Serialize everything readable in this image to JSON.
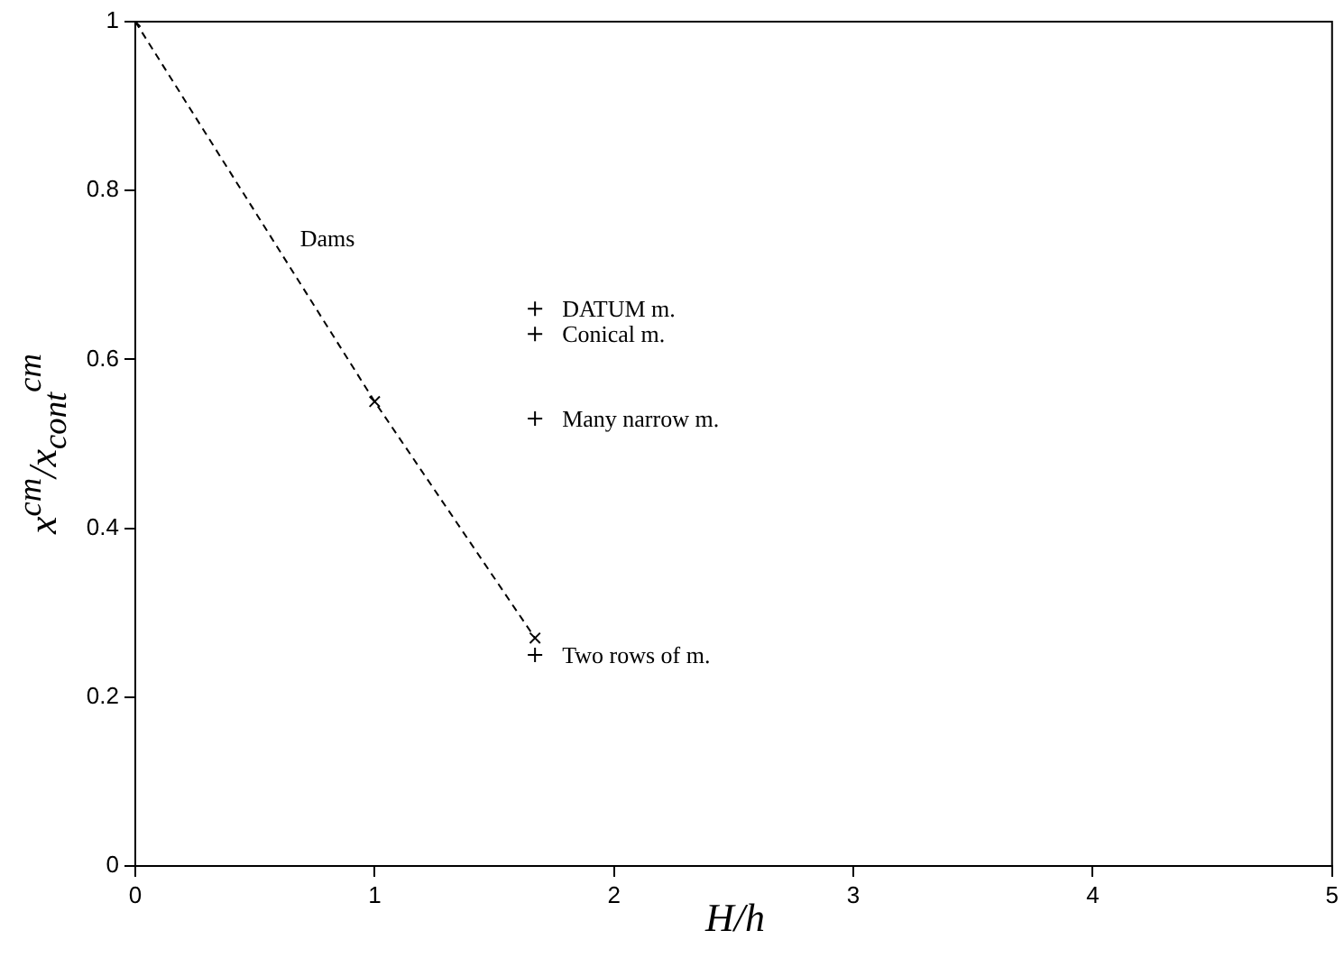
{
  "chart_data": {
    "type": "line",
    "xlabel": "H/h",
    "ylabel": "x$^{cm}$/x$_{cont}$$^{cm}$",
    "xlim": [
      0,
      5
    ],
    "xticks": [
      0,
      1,
      2,
      3,
      4,
      5
    ],
    "ylim": [
      0,
      1
    ],
    "yticks": [
      0,
      {
        "value": 0.2,
        "label": "0.2"
      },
      {
        "value": 0.4,
        "label": "0.4"
      },
      {
        "value": 0.6,
        "label": "0.6"
      },
      {
        "value": 0.8,
        "label": "0.8"
      },
      1
    ],
    "grid": false,
    "legend": false,
    "series": [
      {
        "name": "Dams",
        "type": "line",
        "color": "#000000",
        "x": [
          0,
          1,
          1.67
        ],
        "values": [
          1,
          0.55,
          0.27
        ],
        "marker": "cross",
        "line_style": "dashed"
      },
      {
        "name": "DATUM m.",
        "type": "scatter",
        "color": "#000000",
        "x": [
          1.67
        ],
        "values": [
          0.66
        ],
        "marker": "cross"
      },
      {
        "name": "Conical m.",
        "type": "scatter",
        "color": "#000000",
        "x": [
          1.67
        ],
        "values": [
          0.63
        ],
        "marker": "cross"
      },
      {
        "name": "Many narrow m.",
        "type": "scatter",
        "color": "#000000",
        "x": [
          1.67
        ],
        "values": [
          0.53
        ],
        "marker": "cross"
      },
      {
        "name": "Two rows of m.",
        "type": "scatter",
        "color": "#000000",
        "x": [
          1.67
        ],
        "values": [
          0.25
        ],
        "marker": "cross"
      }
    ]
  }
}
